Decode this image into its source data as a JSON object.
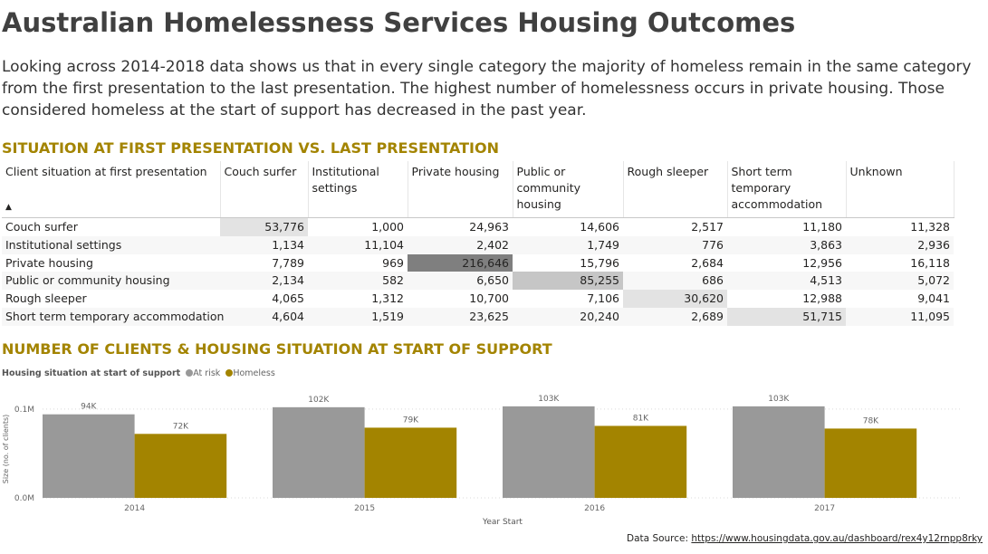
{
  "title": "Australian Homelessness Services Housing Outcomes",
  "description": "Looking across 2014-2018 data shows us that in every single category the majority of homeless remain in the same category from the first presentation to the last presentation. The highest number of homelessness occurs in private housing. Those considered homeless at the start of support has decreased in the past year.",
  "matrix": {
    "section_title": "SITUATION AT FIRST PRESENTATION VS. LAST PRESENTATION",
    "corner_header": "Client situation at first presentation",
    "columns": [
      "Couch surfer",
      "Institutional settings",
      "Private housing",
      "Public or community housing",
      "Rough sleeper",
      "Short term temporary accommodation",
      "Unknown"
    ],
    "rows": [
      {
        "label": "Couch surfer",
        "values": [
          "53,776",
          "1,000",
          "24,963",
          "14,606",
          "2,517",
          "11,180",
          "11,328"
        ]
      },
      {
        "label": "Institutional settings",
        "values": [
          "1,134",
          "11,104",
          "2,402",
          "1,749",
          "776",
          "3,863",
          "2,936"
        ]
      },
      {
        "label": "Private housing",
        "values": [
          "7,789",
          "969",
          "216,646",
          "15,796",
          "2,684",
          "12,956",
          "16,118"
        ]
      },
      {
        "label": "Public or community housing",
        "values": [
          "2,134",
          "582",
          "6,650",
          "85,255",
          "686",
          "4,513",
          "5,072"
        ]
      },
      {
        "label": "Rough sleeper",
        "values": [
          "4,065",
          "1,312",
          "10,700",
          "7,106",
          "30,620",
          "12,988",
          "9,041"
        ]
      },
      {
        "label": "Short term temporary accommodation",
        "values": [
          "4,604",
          "1,519",
          "23,625",
          "20,240",
          "2,689",
          "51,715",
          "11,095"
        ]
      }
    ]
  },
  "chart_section_title": "NUMBER OF CLIENTS & HOUSING SITUATION AT START OF SUPPORT",
  "legend": {
    "title": "Housing situation at start of support",
    "items": [
      {
        "label": "At risk",
        "color": "#999999"
      },
      {
        "label": "Homeless",
        "color": "#a38400"
      }
    ]
  },
  "chart_data": {
    "type": "bar",
    "categories": [
      "2014",
      "2015",
      "2016",
      "2017"
    ],
    "series": [
      {
        "name": "At risk",
        "color": "#999999",
        "values": [
          94000,
          102000,
          103000,
          103000
        ],
        "labels": [
          "94K",
          "102K",
          "103K",
          "103K"
        ]
      },
      {
        "name": "Homeless",
        "color": "#a38400",
        "values": [
          72000,
          79000,
          81000,
          78000
        ],
        "labels": [
          "72K",
          "79K",
          "81K",
          "78K"
        ]
      }
    ],
    "yticks": [
      {
        "value": 0,
        "label": "0.0M"
      },
      {
        "value": 100000,
        "label": "0.1M"
      }
    ],
    "ylim": [
      0,
      110000
    ],
    "xlabel": "Year Start",
    "ylabel": "Size (no. of clients)",
    "grid": true,
    "legend_position": "top-left"
  },
  "source": {
    "prefix": "Data Source: ",
    "link_text": "https://www.housingdata.gov.au/dashboard/rex4y12rnpp8rky"
  }
}
